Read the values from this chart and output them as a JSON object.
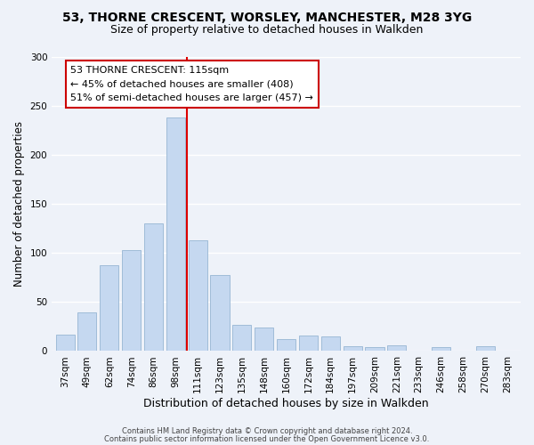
{
  "title": "53, THORNE CRESCENT, WORSLEY, MANCHESTER, M28 3YG",
  "subtitle": "Size of property relative to detached houses in Walkden",
  "xlabel": "Distribution of detached houses by size in Walkden",
  "ylabel": "Number of detached properties",
  "bar_labels": [
    "37sqm",
    "49sqm",
    "62sqm",
    "74sqm",
    "86sqm",
    "98sqm",
    "111sqm",
    "123sqm",
    "135sqm",
    "148sqm",
    "160sqm",
    "172sqm",
    "184sqm",
    "197sqm",
    "209sqm",
    "221sqm",
    "233sqm",
    "246sqm",
    "258sqm",
    "270sqm",
    "283sqm"
  ],
  "bar_values": [
    17,
    39,
    88,
    103,
    130,
    238,
    113,
    78,
    27,
    24,
    12,
    16,
    15,
    5,
    4,
    6,
    0,
    4,
    0,
    5,
    0
  ],
  "bar_color": "#c5d8f0",
  "bar_edge_color": "#a0bcd8",
  "red_line_x": 5.5,
  "red_line_color": "#dd0000",
  "ylim": [
    0,
    300
  ],
  "yticks": [
    0,
    50,
    100,
    150,
    200,
    250,
    300
  ],
  "annotation_text_line1": "53 THORNE CRESCENT: 115sqm",
  "annotation_text_line2": "← 45% of detached houses are smaller (408)",
  "annotation_text_line3": "51% of semi-detached houses are larger (457) →",
  "footer_line1": "Contains HM Land Registry data © Crown copyright and database right 2024.",
  "footer_line2": "Contains public sector information licensed under the Open Government Licence v3.0.",
  "bg_color": "#eef2f9",
  "plot_bg_color": "#eef2f9",
  "grid_color": "#ffffff",
  "annotation_box_color": "#ffffff",
  "annotation_box_edge": "#cc0000"
}
